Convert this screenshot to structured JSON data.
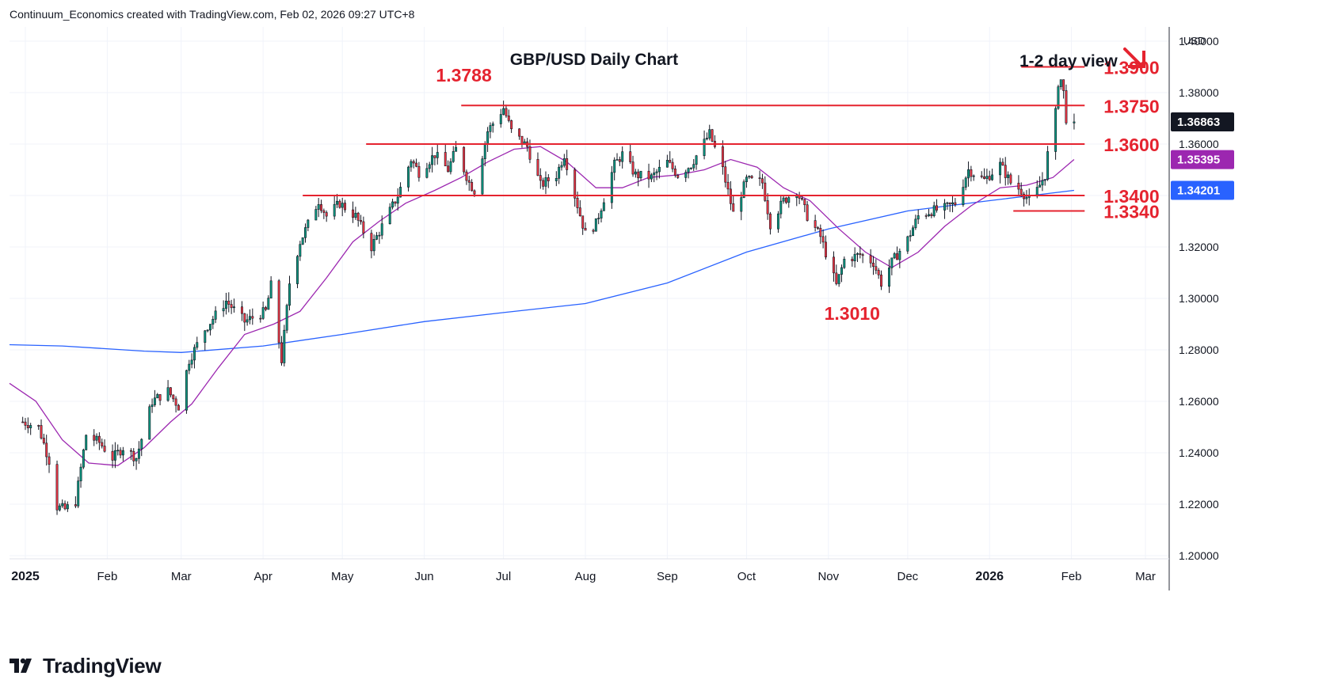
{
  "header": {
    "credit": "Continuum_Economics created with TradingView.com, Feb 02, 2026 09:27 UTC+8"
  },
  "brand": {
    "name": "TradingView",
    "icon": "tradingview-logo-icon"
  },
  "colors": {
    "up": "#089981",
    "down": "#f23645",
    "level": "#e5232f",
    "ma_long": "#2962ff",
    "ma_short": "#9c27b0",
    "price_badge": "#131722",
    "grid": "#f0f3fa"
  },
  "chart_data": {
    "type": "candlestick",
    "title": "GBP/USD Daily Chart",
    "subtitle": "1-2 day view",
    "direction_icon": "arrow-down-right-icon",
    "currency": "USD",
    "ylim": [
      1.2,
      1.4
    ],
    "y_ticks": [
      "1.40000",
      "1.38000",
      "1.36000",
      "1.34000",
      "1.32000",
      "1.30000",
      "1.28000",
      "1.26000",
      "1.24000",
      "1.22000",
      "1.20000"
    ],
    "x_ticks": [
      {
        "label": "2025",
        "date": "2025-01-01"
      },
      {
        "label": "Feb",
        "date": "2025-02-01"
      },
      {
        "label": "Mar",
        "date": "2025-03-01"
      },
      {
        "label": "Apr",
        "date": "2025-04-01"
      },
      {
        "label": "May",
        "date": "2025-05-01"
      },
      {
        "label": "Jun",
        "date": "2025-06-01"
      },
      {
        "label": "Jul",
        "date": "2025-07-01"
      },
      {
        "label": "Aug",
        "date": "2025-08-01"
      },
      {
        "label": "Sep",
        "date": "2025-09-01"
      },
      {
        "label": "Oct",
        "date": "2025-10-01"
      },
      {
        "label": "Nov",
        "date": "2025-11-01"
      },
      {
        "label": "Dec",
        "date": "2025-12-01"
      },
      {
        "label": "2026",
        "date": "2026-01-01"
      },
      {
        "label": "Feb",
        "date": "2026-02-01"
      },
      {
        "label": "Mar",
        "date": "2026-03-01"
      }
    ],
    "xlim": [
      "2024-12-26",
      "2026-03-10"
    ],
    "levels": [
      {
        "label": "1.3900",
        "value": 1.39,
        "from": "2026-01-13",
        "to": "2026-02-06"
      },
      {
        "label": "1.3750",
        "value": 1.375,
        "from": "2025-06-15",
        "to": "2026-02-06"
      },
      {
        "label": "1.3600",
        "value": 1.36,
        "from": "2025-05-10",
        "to": "2026-02-06"
      },
      {
        "label": "1.3400",
        "value": 1.34,
        "from": "2025-04-16",
        "to": "2026-02-06"
      },
      {
        "label": "1.3340",
        "value": 1.334,
        "from": "2026-01-10",
        "to": "2026-02-06"
      }
    ],
    "annotations": [
      {
        "label": "1.3788",
        "date": "2025-06-28",
        "value": 1.3788
      },
      {
        "label": "1.3010",
        "date": "2025-11-01",
        "value": 1.301
      }
    ],
    "price_labels": [
      {
        "label": "1.36863",
        "value": 1.36863,
        "color": "#131722"
      },
      {
        "label": "1.35395",
        "value": 1.35395,
        "color": "#9c27b0"
      },
      {
        "label": "1.34201",
        "value": 1.34201,
        "color": "#2962ff"
      }
    ],
    "close_path": [
      [
        "2024-12-31",
        1.252
      ],
      [
        "2025-01-06",
        1.25
      ],
      [
        "2025-01-10",
        1.237
      ],
      [
        "2025-01-13",
        1.219
      ],
      [
        "2025-01-16",
        1.218
      ],
      [
        "2025-01-20",
        1.221
      ],
      [
        "2025-01-24",
        1.247
      ],
      [
        "2025-01-29",
        1.244
      ],
      [
        "2025-02-03",
        1.238
      ],
      [
        "2025-02-07",
        1.242
      ],
      [
        "2025-02-12",
        1.238
      ],
      [
        "2025-02-18",
        1.26
      ],
      [
        "2025-02-24",
        1.264
      ],
      [
        "2025-02-28",
        1.258
      ],
      [
        "2025-03-04",
        1.276
      ],
      [
        "2025-03-10",
        1.288
      ],
      [
        "2025-03-18",
        1.299
      ],
      [
        "2025-03-25",
        1.291
      ],
      [
        "2025-04-02",
        1.295
      ],
      [
        "2025-04-04",
        1.305
      ],
      [
        "2025-04-08",
        1.276
      ],
      [
        "2025-04-11",
        1.306
      ],
      [
        "2025-04-15",
        1.322
      ],
      [
        "2025-04-22",
        1.338
      ],
      [
        "2025-04-25",
        1.332
      ],
      [
        "2025-04-30",
        1.337
      ],
      [
        "2025-05-06",
        1.332
      ],
      [
        "2025-05-12",
        1.32
      ],
      [
        "2025-05-16",
        1.328
      ],
      [
        "2025-05-22",
        1.34
      ],
      [
        "2025-05-27",
        1.354
      ],
      [
        "2025-05-30",
        1.349
      ],
      [
        "2025-06-05",
        1.356
      ],
      [
        "2025-06-10",
        1.35
      ],
      [
        "2025-06-13",
        1.358
      ],
      [
        "2025-06-18",
        1.345
      ],
      [
        "2025-06-20",
        1.342
      ],
      [
        "2025-06-25",
        1.365
      ],
      [
        "2025-07-01",
        1.374
      ],
      [
        "2025-07-04",
        1.365
      ],
      [
        "2025-07-10",
        1.359
      ],
      [
        "2025-07-15",
        1.344
      ],
      [
        "2025-07-21",
        1.348
      ],
      [
        "2025-07-24",
        1.356
      ],
      [
        "2025-07-28",
        1.34
      ],
      [
        "2025-08-01",
        1.325
      ],
      [
        "2025-08-05",
        1.329
      ],
      [
        "2025-08-12",
        1.352
      ],
      [
        "2025-08-15",
        1.356
      ],
      [
        "2025-08-20",
        1.348
      ],
      [
        "2025-08-26",
        1.347
      ],
      [
        "2025-09-01",
        1.353
      ],
      [
        "2025-09-05",
        1.348
      ],
      [
        "2025-09-10",
        1.352
      ],
      [
        "2025-09-17",
        1.364
      ],
      [
        "2025-09-22",
        1.35
      ],
      [
        "2025-09-26",
        1.333
      ],
      [
        "2025-10-01",
        1.346
      ],
      [
        "2025-10-07",
        1.345
      ],
      [
        "2025-10-10",
        1.329
      ],
      [
        "2025-10-15",
        1.338
      ],
      [
        "2025-10-20",
        1.342
      ],
      [
        "2025-10-24",
        1.332
      ],
      [
        "2025-10-29",
        1.324
      ],
      [
        "2025-11-04",
        1.305
      ],
      [
        "2025-11-07",
        1.315
      ],
      [
        "2025-11-13",
        1.317
      ],
      [
        "2025-11-18",
        1.314
      ],
      [
        "2025-11-21",
        1.306
      ],
      [
        "2025-11-25",
        1.314
      ],
      [
        "2025-12-01",
        1.323
      ],
      [
        "2025-12-05",
        1.332
      ],
      [
        "2025-12-10",
        1.334
      ],
      [
        "2025-12-15",
        1.335
      ],
      [
        "2025-12-19",
        1.337
      ],
      [
        "2025-12-24",
        1.35
      ],
      [
        "2025-12-30",
        1.346
      ],
      [
        "2026-01-05",
        1.352
      ],
      [
        "2026-01-09",
        1.345
      ],
      [
        "2026-01-13",
        1.342
      ],
      [
        "2026-01-16",
        1.338
      ],
      [
        "2026-01-19",
        1.342
      ],
      [
        "2026-01-22",
        1.348
      ],
      [
        "2026-01-24",
        1.364
      ],
      [
        "2026-01-26",
        1.372
      ],
      [
        "2026-01-27",
        1.384
      ],
      [
        "2026-01-28",
        1.385
      ],
      [
        "2026-01-29",
        1.38
      ],
      [
        "2026-01-30",
        1.37
      ],
      [
        "2026-02-02",
        1.36863
      ]
    ],
    "ma_long_path": [
      [
        "2024-12-26",
        1.282
      ],
      [
        "2025-01-15",
        1.2815
      ],
      [
        "2025-02-15",
        1.2795
      ],
      [
        "2025-03-01",
        1.279
      ],
      [
        "2025-04-01",
        1.2815
      ],
      [
        "2025-05-01",
        1.286
      ],
      [
        "2025-06-01",
        1.291
      ],
      [
        "2025-07-01",
        1.2945
      ],
      [
        "2025-08-01",
        1.298
      ],
      [
        "2025-09-01",
        1.306
      ],
      [
        "2025-10-01",
        1.318
      ],
      [
        "2025-11-01",
        1.327
      ],
      [
        "2025-12-01",
        1.334
      ],
      [
        "2026-01-01",
        1.338
      ],
      [
        "2026-02-02",
        1.342
      ]
    ],
    "ma_short_path": [
      [
        "2024-12-26",
        1.267
      ],
      [
        "2025-01-05",
        1.26
      ],
      [
        "2025-01-15",
        1.245
      ],
      [
        "2025-01-25",
        1.236
      ],
      [
        "2025-02-05",
        1.235
      ],
      [
        "2025-02-15",
        1.242
      ],
      [
        "2025-02-25",
        1.252
      ],
      [
        "2025-03-05",
        1.259
      ],
      [
        "2025-03-15",
        1.273
      ],
      [
        "2025-03-25",
        1.286
      ],
      [
        "2025-04-05",
        1.29
      ],
      [
        "2025-04-15",
        1.295
      ],
      [
        "2025-04-25",
        1.308
      ],
      [
        "2025-05-05",
        1.322
      ],
      [
        "2025-05-15",
        1.33
      ],
      [
        "2025-05-25",
        1.337
      ],
      [
        "2025-06-05",
        1.342
      ],
      [
        "2025-06-15",
        1.347
      ],
      [
        "2025-06-25",
        1.353
      ],
      [
        "2025-07-05",
        1.358
      ],
      [
        "2025-07-15",
        1.359
      ],
      [
        "2025-07-25",
        1.353
      ],
      [
        "2025-08-05",
        1.343
      ],
      [
        "2025-08-15",
        1.343
      ],
      [
        "2025-08-25",
        1.347
      ],
      [
        "2025-09-05",
        1.348
      ],
      [
        "2025-09-15",
        1.35
      ],
      [
        "2025-09-25",
        1.354
      ],
      [
        "2025-10-05",
        1.351
      ],
      [
        "2025-10-15",
        1.343
      ],
      [
        "2025-10-25",
        1.338
      ],
      [
        "2025-11-05",
        1.327
      ],
      [
        "2025-11-15",
        1.318
      ],
      [
        "2025-11-25",
        1.312
      ],
      [
        "2025-12-05",
        1.318
      ],
      [
        "2025-12-15",
        1.328
      ],
      [
        "2025-12-25",
        1.336
      ],
      [
        "2026-01-05",
        1.343
      ],
      [
        "2026-01-15",
        1.344
      ],
      [
        "2026-01-25",
        1.347
      ],
      [
        "2026-02-02",
        1.354
      ]
    ]
  }
}
